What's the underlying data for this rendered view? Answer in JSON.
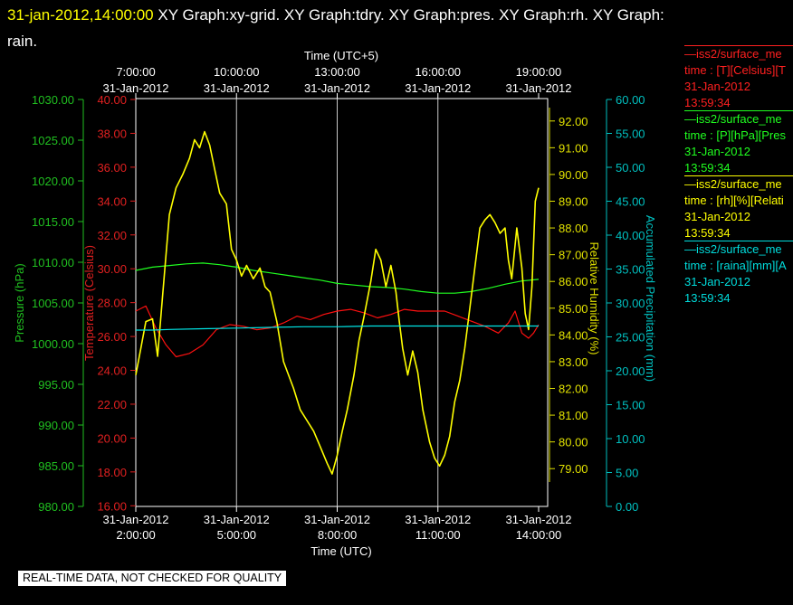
{
  "header": {
    "datetime": "31-jan-2012,14:00:00",
    "title_line1": "XY Graph:xy-grid.  XY Graph:tdry.  XY Graph:pres.  XY Graph:rh.  XY Graph:",
    "title_line2": "rain."
  },
  "legend": [
    {
      "name": "—iss2/surface_me",
      "label": "time : [T][Celsius][T",
      "date": "31-Jan-2012",
      "time": "13:59:34",
      "color": "#ff2020"
    },
    {
      "name": "—iss2/surface_me",
      "label": "time : [P][hPa][Pres",
      "date": "31-Jan-2012",
      "time": "13:59:34",
      "color": "#20ff20"
    },
    {
      "name": "—iss2/surface_me",
      "label": "time : [rh][%][Relati",
      "date": "31-Jan-2012",
      "time": "13:59:34",
      "color": "#ffff00"
    },
    {
      "name": "—iss2/surface_me",
      "label": "time : [raina][mm][A",
      "date": "31-Jan-2012",
      "time": "13:59:34",
      "color": "#00dddd"
    }
  ],
  "footer": {
    "quality_note": "REAL-TIME DATA, NOT CHECKED FOR QUALITY"
  },
  "chart_data": {
    "type": "line",
    "x_bottom": {
      "label": "Time (UTC)",
      "ticks": [
        {
          "date": "31-Jan-2012",
          "time": "2:00:00",
          "hour": 2
        },
        {
          "date": "31-Jan-2012",
          "time": "5:00:00",
          "hour": 5
        },
        {
          "date": "31-Jan-2012",
          "time": "8:00:00",
          "hour": 8
        },
        {
          "date": "31-Jan-2012",
          "time": "11:00:00",
          "hour": 11
        },
        {
          "date": "31-Jan-2012",
          "time": "14:00:00",
          "hour": 14
        }
      ],
      "range_hours_utc": [
        2,
        14
      ]
    },
    "x_top": {
      "label": "Time (UTC+5)",
      "ticks": [
        {
          "time": "7:00:00",
          "date": "31-Jan-2012",
          "hour": 2
        },
        {
          "time": "10:00:00",
          "date": "31-Jan-2012",
          "hour": 5
        },
        {
          "time": "13:00:00",
          "date": "31-Jan-2012",
          "hour": 8
        },
        {
          "time": "16:00:00",
          "date": "31-Jan-2012",
          "hour": 11
        },
        {
          "time": "19:00:00",
          "date": "31-Jan-2012",
          "hour": 14
        }
      ]
    },
    "axes": {
      "pressure": {
        "label": "Pressure (hPa)",
        "range": [
          980,
          1030
        ],
        "ticks": [
          "980.00",
          "985.00",
          "990.00",
          "995.00",
          "1000.00",
          "1005.00",
          "1010.00",
          "1015.00",
          "1020.00",
          "1025.00",
          "1030.00"
        ],
        "color": "#20c020"
      },
      "temperature": {
        "label": "Temperature (Celsius)",
        "range": [
          15,
          40
        ],
        "ticks": [
          "16.00",
          "18.00",
          "20.00",
          "22.00",
          "24.00",
          "26.00",
          "28.00",
          "30.00",
          "32.00",
          "34.00",
          "36.00",
          "38.00",
          "40.00"
        ],
        "color": "#e02020"
      },
      "rh": {
        "label": "Relative Humidity (%)",
        "range": [
          78.5,
          92.5
        ],
        "ticks": [
          "79.00",
          "80.00",
          "81.00",
          "82.00",
          "83.00",
          "84.00",
          "85.00",
          "86.00",
          "87.00",
          "88.00",
          "89.00",
          "90.00",
          "91.00",
          "92.00"
        ],
        "color": "#e0e000"
      },
      "rain": {
        "label": "Accumulated Precipitation (mm)",
        "range": [
          0,
          60
        ],
        "ticks": [
          "0.00",
          "5.00",
          "10.00",
          "15.00",
          "20.00",
          "25.00",
          "30.00",
          "35.00",
          "40.00",
          "45.00",
          "50.00",
          "55.00",
          "60.00"
        ],
        "color": "#00c0c0"
      }
    },
    "series": [
      {
        "axis": "temperature",
        "color": "#ff1010",
        "points": [
          [
            2,
            27.5
          ],
          [
            2.3,
            27.8
          ],
          [
            2.6,
            26.5
          ],
          [
            2.9,
            25.5
          ],
          [
            3.2,
            24.8
          ],
          [
            3.6,
            25.0
          ],
          [
            4.0,
            25.5
          ],
          [
            4.4,
            26.4
          ],
          [
            4.8,
            26.7
          ],
          [
            5.2,
            26.6
          ],
          [
            5.6,
            26.4
          ],
          [
            6.0,
            26.5
          ],
          [
            6.4,
            26.8
          ],
          [
            6.8,
            27.2
          ],
          [
            7.2,
            27.0
          ],
          [
            7.6,
            27.3
          ],
          [
            8.0,
            27.5
          ],
          [
            8.4,
            27.6
          ],
          [
            8.8,
            27.4
          ],
          [
            9.2,
            27.1
          ],
          [
            9.6,
            27.3
          ],
          [
            10.0,
            27.6
          ],
          [
            10.4,
            27.5
          ],
          [
            10.8,
            27.5
          ],
          [
            11.2,
            27.5
          ],
          [
            11.6,
            27.2
          ],
          [
            12.0,
            26.9
          ],
          [
            12.4,
            26.6
          ],
          [
            12.8,
            26.2
          ],
          [
            13.1,
            26.8
          ],
          [
            13.3,
            27.5
          ],
          [
            13.5,
            26.2
          ],
          [
            13.7,
            25.9
          ],
          [
            13.85,
            26.2
          ],
          [
            14.0,
            26.7
          ]
        ]
      },
      {
        "axis": "pressure",
        "color": "#20ff20",
        "points": [
          [
            2,
            1009.0
          ],
          [
            2.5,
            1009.4
          ],
          [
            3,
            1009.6
          ],
          [
            3.5,
            1009.8
          ],
          [
            4,
            1009.9
          ],
          [
            4.5,
            1009.7
          ],
          [
            5,
            1009.4
          ],
          [
            5.5,
            1009.0
          ],
          [
            6,
            1008.7
          ],
          [
            6.5,
            1008.4
          ],
          [
            7,
            1008.1
          ],
          [
            7.5,
            1007.8
          ],
          [
            8,
            1007.4
          ],
          [
            8.5,
            1007.2
          ],
          [
            9,
            1007.0
          ],
          [
            9.5,
            1006.9
          ],
          [
            10,
            1006.7
          ],
          [
            10.5,
            1006.4
          ],
          [
            11,
            1006.2
          ],
          [
            11.5,
            1006.2
          ],
          [
            12,
            1006.4
          ],
          [
            12.5,
            1006.8
          ],
          [
            13,
            1007.3
          ],
          [
            13.5,
            1007.7
          ],
          [
            14,
            1007.9
          ]
        ]
      },
      {
        "axis": "rh",
        "color": "#ffff00",
        "points": [
          [
            2,
            82.5
          ],
          [
            2.15,
            83.5
          ],
          [
            2.3,
            84.5
          ],
          [
            2.5,
            84.6
          ],
          [
            2.65,
            83.2
          ],
          [
            2.8,
            85.5
          ],
          [
            3.0,
            88.5
          ],
          [
            3.2,
            89.5
          ],
          [
            3.4,
            90.0
          ],
          [
            3.6,
            90.6
          ],
          [
            3.75,
            91.3
          ],
          [
            3.9,
            91.0
          ],
          [
            4.05,
            91.6
          ],
          [
            4.2,
            91.1
          ],
          [
            4.35,
            90.2
          ],
          [
            4.5,
            89.3
          ],
          [
            4.7,
            88.9
          ],
          [
            4.85,
            87.2
          ],
          [
            5.0,
            86.8
          ],
          [
            5.15,
            86.2
          ],
          [
            5.3,
            86.6
          ],
          [
            5.5,
            86.1
          ],
          [
            5.7,
            86.5
          ],
          [
            5.85,
            85.8
          ],
          [
            6.0,
            85.6
          ],
          [
            6.2,
            84.5
          ],
          [
            6.4,
            83.0
          ],
          [
            6.7,
            82.0
          ],
          [
            6.9,
            81.2
          ],
          [
            7.1,
            80.8
          ],
          [
            7.3,
            80.4
          ],
          [
            7.5,
            79.8
          ],
          [
            7.7,
            79.2
          ],
          [
            7.85,
            78.8
          ],
          [
            8.0,
            79.5
          ],
          [
            8.15,
            80.4
          ],
          [
            8.3,
            81.2
          ],
          [
            8.5,
            82.5
          ],
          [
            8.65,
            83.8
          ],
          [
            8.8,
            84.7
          ],
          [
            9.0,
            86.0
          ],
          [
            9.15,
            87.2
          ],
          [
            9.3,
            86.8
          ],
          [
            9.45,
            85.8
          ],
          [
            9.6,
            86.6
          ],
          [
            9.75,
            85.6
          ],
          [
            9.85,
            84.5
          ],
          [
            9.95,
            83.5
          ],
          [
            10.1,
            82.5
          ],
          [
            10.25,
            83.4
          ],
          [
            10.4,
            82.6
          ],
          [
            10.55,
            81.2
          ],
          [
            10.75,
            80.0
          ],
          [
            10.9,
            79.4
          ],
          [
            11.05,
            79.1
          ],
          [
            11.2,
            79.5
          ],
          [
            11.35,
            80.2
          ],
          [
            11.5,
            81.5
          ],
          [
            11.65,
            82.3
          ],
          [
            11.8,
            83.5
          ],
          [
            11.95,
            85.0
          ],
          [
            12.1,
            86.5
          ],
          [
            12.25,
            88.0
          ],
          [
            12.4,
            88.3
          ],
          [
            12.55,
            88.5
          ],
          [
            12.7,
            88.2
          ],
          [
            12.85,
            87.8
          ],
          [
            13.0,
            88.0
          ],
          [
            13.1,
            86.8
          ],
          [
            13.2,
            86.1
          ],
          [
            13.35,
            88.0
          ],
          [
            13.5,
            86.5
          ],
          [
            13.6,
            84.8
          ],
          [
            13.7,
            84.2
          ],
          [
            13.8,
            85.8
          ],
          [
            13.9,
            89.0
          ],
          [
            14.0,
            89.5
          ]
        ]
      },
      {
        "axis": "rain",
        "color": "#00e5e5",
        "points": [
          [
            2,
            26.0
          ],
          [
            2.5,
            26.0
          ],
          [
            3,
            26.1
          ],
          [
            4,
            26.2
          ],
          [
            5,
            26.3
          ],
          [
            6,
            26.4
          ],
          [
            7,
            26.5
          ],
          [
            8,
            26.5
          ],
          [
            9,
            26.6
          ],
          [
            10,
            26.6
          ],
          [
            11,
            26.6
          ],
          [
            12,
            26.6
          ],
          [
            13,
            26.6
          ],
          [
            14,
            26.6
          ]
        ]
      }
    ]
  }
}
